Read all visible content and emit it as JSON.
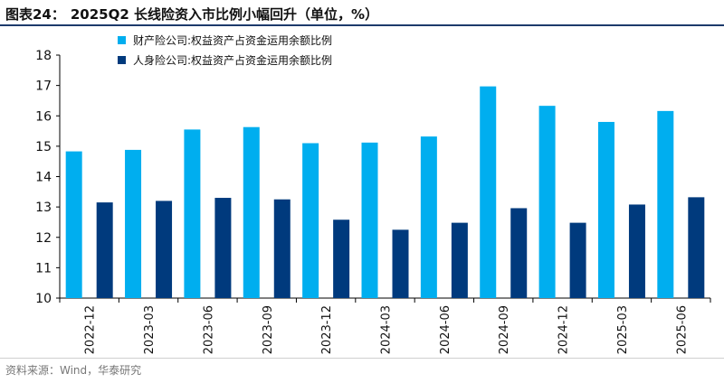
{
  "header": {
    "prefix": "图表24：",
    "title": "2025Q2 长线险资入市比例小幅回升（单位，%）"
  },
  "source": "资料来源：Wind，华泰研究",
  "chart_data": {
    "type": "bar",
    "categories": [
      "2022-12",
      "2023-03",
      "2023-06",
      "2023-09",
      "2023-12",
      "2024-03",
      "2024-06",
      "2024-09",
      "2024-12",
      "2025-03",
      "2025-06"
    ],
    "series": [
      {
        "name": "财产险公司:权益资产占资金运用余额比例",
        "color": "#00AEEF",
        "values": [
          14.83,
          14.88,
          15.55,
          15.63,
          15.1,
          15.12,
          15.32,
          16.97,
          16.33,
          15.8,
          16.16
        ]
      },
      {
        "name": "人身险公司:权益资产占资金运用余额比例",
        "color": "#003A7D",
        "values": [
          13.15,
          13.2,
          13.3,
          13.25,
          12.58,
          12.25,
          12.48,
          12.96,
          12.48,
          13.08,
          13.32
        ]
      }
    ],
    "ylim": [
      10,
      18
    ],
    "yticks": [
      10,
      11,
      12,
      13,
      14,
      15,
      16,
      17,
      18
    ],
    "grid": false,
    "legend": "top-left"
  }
}
